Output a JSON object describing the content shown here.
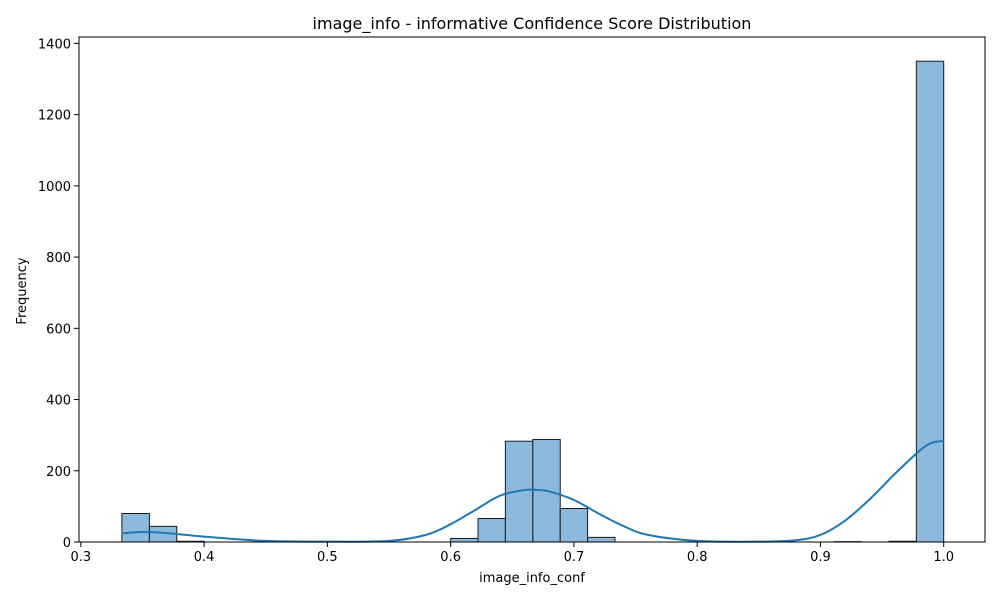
{
  "chart_data": {
    "type": "bar",
    "title": "image_info - informative Confidence Score Distribution",
    "xlabel": "image_info_conf",
    "ylabel": "Frequency",
    "xlim": [
      0.3,
      1.0
    ],
    "ylim": [
      0,
      1400
    ],
    "x_ticks": [
      "0.3",
      "0.4",
      "0.5",
      "0.6",
      "0.7",
      "0.8",
      "0.9",
      "1.0"
    ],
    "y_ticks": [
      "0",
      "200",
      "400",
      "600",
      "800",
      "1000",
      "1200",
      "1400"
    ],
    "bins": [
      {
        "start": 0.3333,
        "end": 0.3556,
        "count": 80
      },
      {
        "start": 0.3556,
        "end": 0.3778,
        "count": 44
      },
      {
        "start": 0.3778,
        "end": 0.4,
        "count": 2
      },
      {
        "start": 0.6,
        "end": 0.6222,
        "count": 10
      },
      {
        "start": 0.6222,
        "end": 0.6444,
        "count": 66
      },
      {
        "start": 0.6444,
        "end": 0.6667,
        "count": 283
      },
      {
        "start": 0.6667,
        "end": 0.6889,
        "count": 288
      },
      {
        "start": 0.6889,
        "end": 0.7111,
        "count": 94
      },
      {
        "start": 0.7111,
        "end": 0.7333,
        "count": 13
      },
      {
        "start": 0.9111,
        "end": 0.9333,
        "count": 1
      },
      {
        "start": 0.9556,
        "end": 0.9778,
        "count": 2
      },
      {
        "start": 0.9778,
        "end": 1.0,
        "count": 1350
      }
    ],
    "kde": {
      "x": [
        0.333,
        0.35,
        0.37,
        0.4,
        0.45,
        0.5,
        0.55,
        0.58,
        0.6,
        0.62,
        0.64,
        0.66,
        0.67,
        0.68,
        0.7,
        0.72,
        0.74,
        0.76,
        0.8,
        0.85,
        0.88,
        0.9,
        0.92,
        0.94,
        0.96,
        0.98,
        0.99,
        1.0
      ],
      "y": [
        24,
        28,
        25,
        15,
        3,
        1,
        3,
        20,
        50,
        90,
        130,
        146,
        146,
        142,
        118,
        80,
        45,
        20,
        3,
        1,
        5,
        20,
        60,
        120,
        190,
        255,
        278,
        284
      ]
    },
    "bar_color": "#8db9dc",
    "bar_edge_color": "#1a1a1a",
    "kde_color": "#1f77b4",
    "grid": false,
    "legend": "none"
  }
}
